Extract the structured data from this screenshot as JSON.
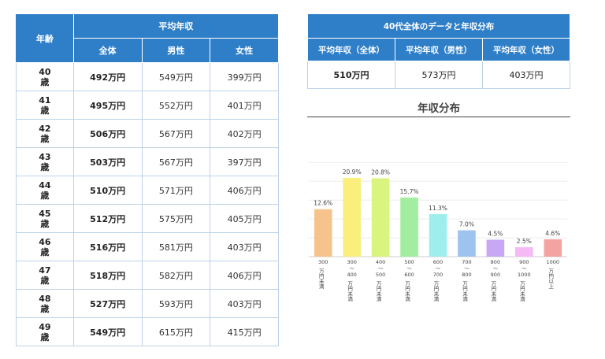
{
  "left_table": {
    "header_age": "年齢",
    "header_avg": "平均年収",
    "col_all": "全体",
    "col_male": "男性",
    "col_female": "女性",
    "rows": [
      {
        "age_num": "40",
        "age_unit": "歳",
        "all": "492万円",
        "male": "549万円",
        "female": "399万円"
      },
      {
        "age_num": "41",
        "age_unit": "歳",
        "all": "495万円",
        "male": "552万円",
        "female": "401万円"
      },
      {
        "age_num": "42",
        "age_unit": "歳",
        "all": "506万円",
        "male": "567万円",
        "female": "402万円"
      },
      {
        "age_num": "43",
        "age_unit": "歳",
        "all": "503万円",
        "male": "567万円",
        "female": "397万円"
      },
      {
        "age_num": "44",
        "age_unit": "歳",
        "all": "510万円",
        "male": "571万円",
        "female": "406万円"
      },
      {
        "age_num": "45",
        "age_unit": "歳",
        "all": "512万円",
        "male": "575万円",
        "female": "405万円"
      },
      {
        "age_num": "46",
        "age_unit": "歳",
        "all": "516万円",
        "male": "581万円",
        "female": "403万円"
      },
      {
        "age_num": "47",
        "age_unit": "歳",
        "all": "518万円",
        "male": "582万円",
        "female": "406万円"
      },
      {
        "age_num": "48",
        "age_unit": "歳",
        "all": "527万円",
        "male": "593万円",
        "female": "403万円"
      },
      {
        "age_num": "49",
        "age_unit": "歳",
        "all": "549万円",
        "male": "615万円",
        "female": "415万円"
      }
    ]
  },
  "summary": {
    "title": "40代全体のデータと年収分布",
    "col_all": "平均年収（全体）",
    "col_male": "平均年収（男性）",
    "col_female": "平均年収（女性）",
    "val_all": "510万円",
    "val_male": "573万円",
    "val_female": "403万円"
  },
  "distribution": {
    "title": "年収分布"
  },
  "chart_data": {
    "type": "bar",
    "title": "年収分布",
    "categories": [
      [
        "300",
        "万円未満"
      ],
      [
        "300",
        "〜",
        "400",
        "万円未満"
      ],
      [
        "400",
        "〜",
        "500",
        "万円未満"
      ],
      [
        "500",
        "〜",
        "600",
        "万円未満"
      ],
      [
        "600",
        "〜",
        "700",
        "万円未満"
      ],
      [
        "700",
        "〜",
        "800",
        "万円未満"
      ],
      [
        "800",
        "〜",
        "900",
        "万円未満"
      ],
      [
        "900",
        "〜",
        "1000",
        "万円未満"
      ],
      [
        "1000",
        "万円以上"
      ]
    ],
    "values": [
      12.6,
      20.9,
      20.8,
      15.7,
      11.3,
      7.0,
      4.5,
      2.5,
      4.6
    ],
    "value_labels": [
      "12.6%",
      "20.9%",
      "20.8%",
      "15.7%",
      "11.3%",
      "7.0%",
      "4.5%",
      "2.5%",
      "4.6%"
    ],
    "colors": [
      "#f7c38c",
      "#f9ef7a",
      "#d9f57f",
      "#a3eda0",
      "#9eeeee",
      "#9ec3ef",
      "#c8a7f4",
      "#f5b9f5",
      "#f4a3a3"
    ],
    "ylim": [
      0,
      28
    ],
    "grid": true
  }
}
